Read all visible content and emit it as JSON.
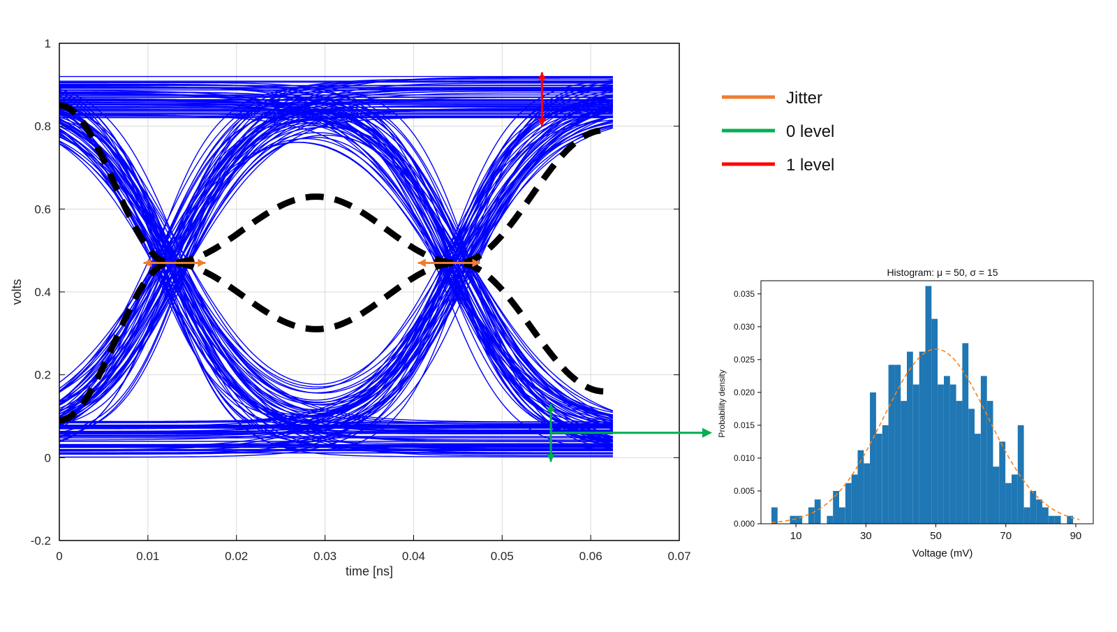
{
  "colors": {
    "trace": "#0000ff",
    "dashed": "#000000",
    "jitter": "#ed7d31",
    "zero_level": "#00b050",
    "one_level": "#ff0000",
    "hist_bar": "#1f77b4",
    "pdf_curve": "#ff7f0e",
    "grid": "#d9d9d9"
  },
  "legend": {
    "placement": "right of eye diagram",
    "items": [
      {
        "label": "Jitter",
        "color": "#ed7d31"
      },
      {
        "label": "0 level",
        "color": "#00b050"
      },
      {
        "label": "1 level",
        "color": "#ff0000"
      }
    ]
  },
  "chart_data": [
    {
      "type": "line",
      "name": "eye-diagram",
      "title": "",
      "xlabel": "time [ns]",
      "ylabel": "volts",
      "xlim": [
        0,
        0.07
      ],
      "ylim": [
        -0.2,
        1
      ],
      "grid": true,
      "xticks": [
        "0",
        "0.01",
        "0.02",
        "0.03",
        "0.04",
        "0.05",
        "0.06",
        "0.07"
      ],
      "yticks": [
        "-0.2",
        "0",
        "0.2",
        "0.4",
        "0.6",
        "0.8",
        "1"
      ],
      "xtick_values": [
        0,
        0.01,
        0.02,
        0.03,
        0.04,
        0.05,
        0.06,
        0.07
      ],
      "ytick_values": [
        -0.2,
        0,
        0.2,
        0.4,
        0.6,
        0.8,
        1
      ],
      "trace_span_ns": [
        0,
        0.0625
      ],
      "levels": {
        "high": [
          0.82,
          0.92
        ],
        "low": [
          0.0,
          0.09
        ]
      },
      "crossing_points_ns": [
        0.0125,
        0.045
      ],
      "crossing_level_v": 0.47,
      "eye_center_ns": 0.029,
      "eye_opening_v": [
        0.31,
        0.63
      ],
      "dashed_envelope": {
        "x": [
          0,
          0.0125,
          0.029,
          0.045,
          0.0615
        ],
        "upper_y": [
          0.85,
          0.47,
          0.63,
          0.47,
          0.79
        ],
        "lower_y": [
          0.09,
          0.47,
          0.31,
          0.47,
          0.16
        ]
      },
      "annotations": [
        {
          "kind": "jitter",
          "x": [
            0.0095,
            0.0165
          ],
          "y": 0.47
        },
        {
          "kind": "jitter",
          "x": [
            0.0405,
            0.0475
          ],
          "y": 0.47
        },
        {
          "kind": "1 level",
          "x": 0.0545,
          "y": [
            0.8,
            0.93
          ]
        },
        {
          "kind": "0 level",
          "x": 0.0555,
          "y": [
            -0.01,
            0.13
          ]
        }
      ]
    },
    {
      "type": "bar",
      "name": "histogram",
      "title": "Histogram: μ = 50, σ = 15",
      "xlabel": "Voltage (mV)",
      "ylabel": "Probability density",
      "xlim": [
        0,
        95
      ],
      "ylim": [
        0,
        0.037
      ],
      "grid": false,
      "xticks": [
        "10",
        "30",
        "50",
        "70",
        "90"
      ],
      "xtick_values": [
        10,
        30,
        50,
        70,
        90
      ],
      "yticks": [
        "0.000",
        "0.005",
        "0.010",
        "0.015",
        "0.020",
        "0.025",
        "0.030",
        "0.035"
      ],
      "ytick_values": [
        0,
        0.005,
        0.01,
        0.015,
        0.02,
        0.025,
        0.03,
        0.035
      ],
      "bin_start": 3,
      "bin_width": 1.76,
      "values": [
        0.0025,
        0.0,
        0.0,
        0.0012,
        0.0012,
        0.0,
        0.0025,
        0.0037,
        0.0,
        0.0012,
        0.005,
        0.0025,
        0.0062,
        0.0075,
        0.0112,
        0.0092,
        0.02,
        0.0137,
        0.015,
        0.0242,
        0.0242,
        0.0187,
        0.0262,
        0.0212,
        0.0262,
        0.0362,
        0.0312,
        0.0212,
        0.0225,
        0.0212,
        0.0187,
        0.0275,
        0.0175,
        0.0137,
        0.0225,
        0.0187,
        0.0087,
        0.0125,
        0.0062,
        0.0075,
        0.015,
        0.0025,
        0.005,
        0.0037,
        0.0025,
        0.0012,
        0.0012,
        0.0,
        0.0012,
        0.0
      ],
      "pdf": {
        "mu": 50,
        "sigma": 15
      }
    }
  ]
}
